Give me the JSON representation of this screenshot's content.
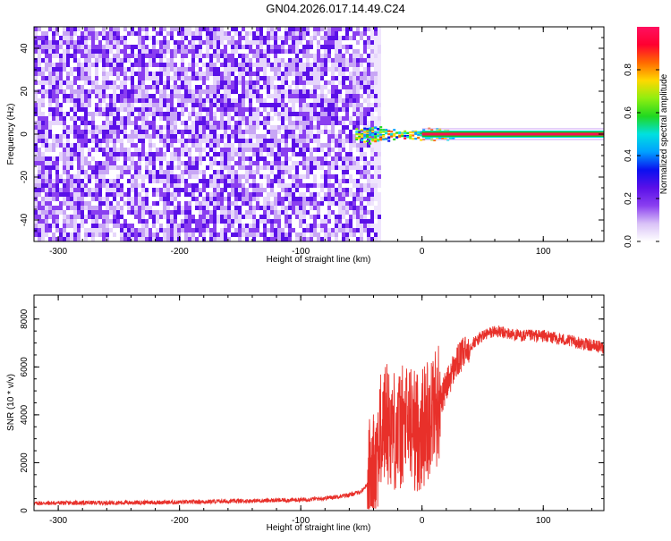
{
  "title": "GN04.2026.017.14.49.C24",
  "chart_data": [
    {
      "type": "heatmap",
      "xlabel": "Height of straight line (km)",
      "ylabel": "Frequency (Hz)",
      "xlim": [
        -320,
        150
      ],
      "ylim": [
        -50,
        50
      ],
      "xticks": [
        -300,
        -200,
        -100,
        0,
        100
      ],
      "yticks": [
        -40,
        -20,
        0,
        20,
        40
      ],
      "colorbar": {
        "label": "Normalized spectral amplitude",
        "range": [
          0,
          1
        ],
        "ticks": [
          0.0,
          0.2,
          0.4,
          0.6,
          0.8
        ],
        "colors": [
          "#ffffff",
          "#d9c2f7",
          "#8a3ff0",
          "#5a10e8",
          "#0a10f0",
          "#00a0ff",
          "#00e0e0",
          "#20d820",
          "#90ee10",
          "#ffd800",
          "#ff6a00",
          "#ff0030",
          "#ff1060"
        ]
      },
      "regions": [
        {
          "name": "broadband noise",
          "x": [
            -320,
            -35
          ],
          "freq": [
            -50,
            50
          ],
          "amplitude": 0.45
        },
        {
          "name": "transition",
          "x": [
            -55,
            25
          ],
          "freq": [
            -4,
            4
          ],
          "amplitude": 0.55
        },
        {
          "name": "carrier line",
          "x": [
            0,
            150
          ],
          "freq": [
            -1,
            1
          ],
          "amplitude": 1.0
        }
      ]
    },
    {
      "type": "line",
      "xlabel": "Height of straight line (km)",
      "ylabel": "SNR (10 * v/v)",
      "xlim": [
        -320,
        150
      ],
      "ylim": [
        0,
        9000
      ],
      "xticks": [
        -300,
        -200,
        -100,
        0,
        100
      ],
      "yticks": [
        0,
        2000,
        4000,
        6000,
        8000
      ],
      "series": [
        {
          "color": "#e8302a",
          "x": [
            -320,
            -300,
            -250,
            -200,
            -150,
            -100,
            -80,
            -60,
            -50,
            -45,
            -40,
            -35,
            -30,
            -25,
            -20,
            -15,
            -10,
            -5,
            0,
            5,
            10,
            15,
            20,
            25,
            30,
            40,
            50,
            60,
            70,
            80,
            90,
            100,
            110,
            120,
            130,
            140,
            150
          ],
          "y": [
            300,
            320,
            330,
            350,
            400,
            450,
            520,
            650,
            800,
            1100,
            1800,
            3000,
            3800,
            3500,
            3200,
            3600,
            3700,
            3300,
            3400,
            3900,
            4300,
            4600,
            5200,
            5800,
            6300,
            6900,
            7300,
            7500,
            7400,
            7300,
            7300,
            7300,
            7200,
            7100,
            7000,
            6900,
            6800
          ]
        }
      ]
    }
  ]
}
